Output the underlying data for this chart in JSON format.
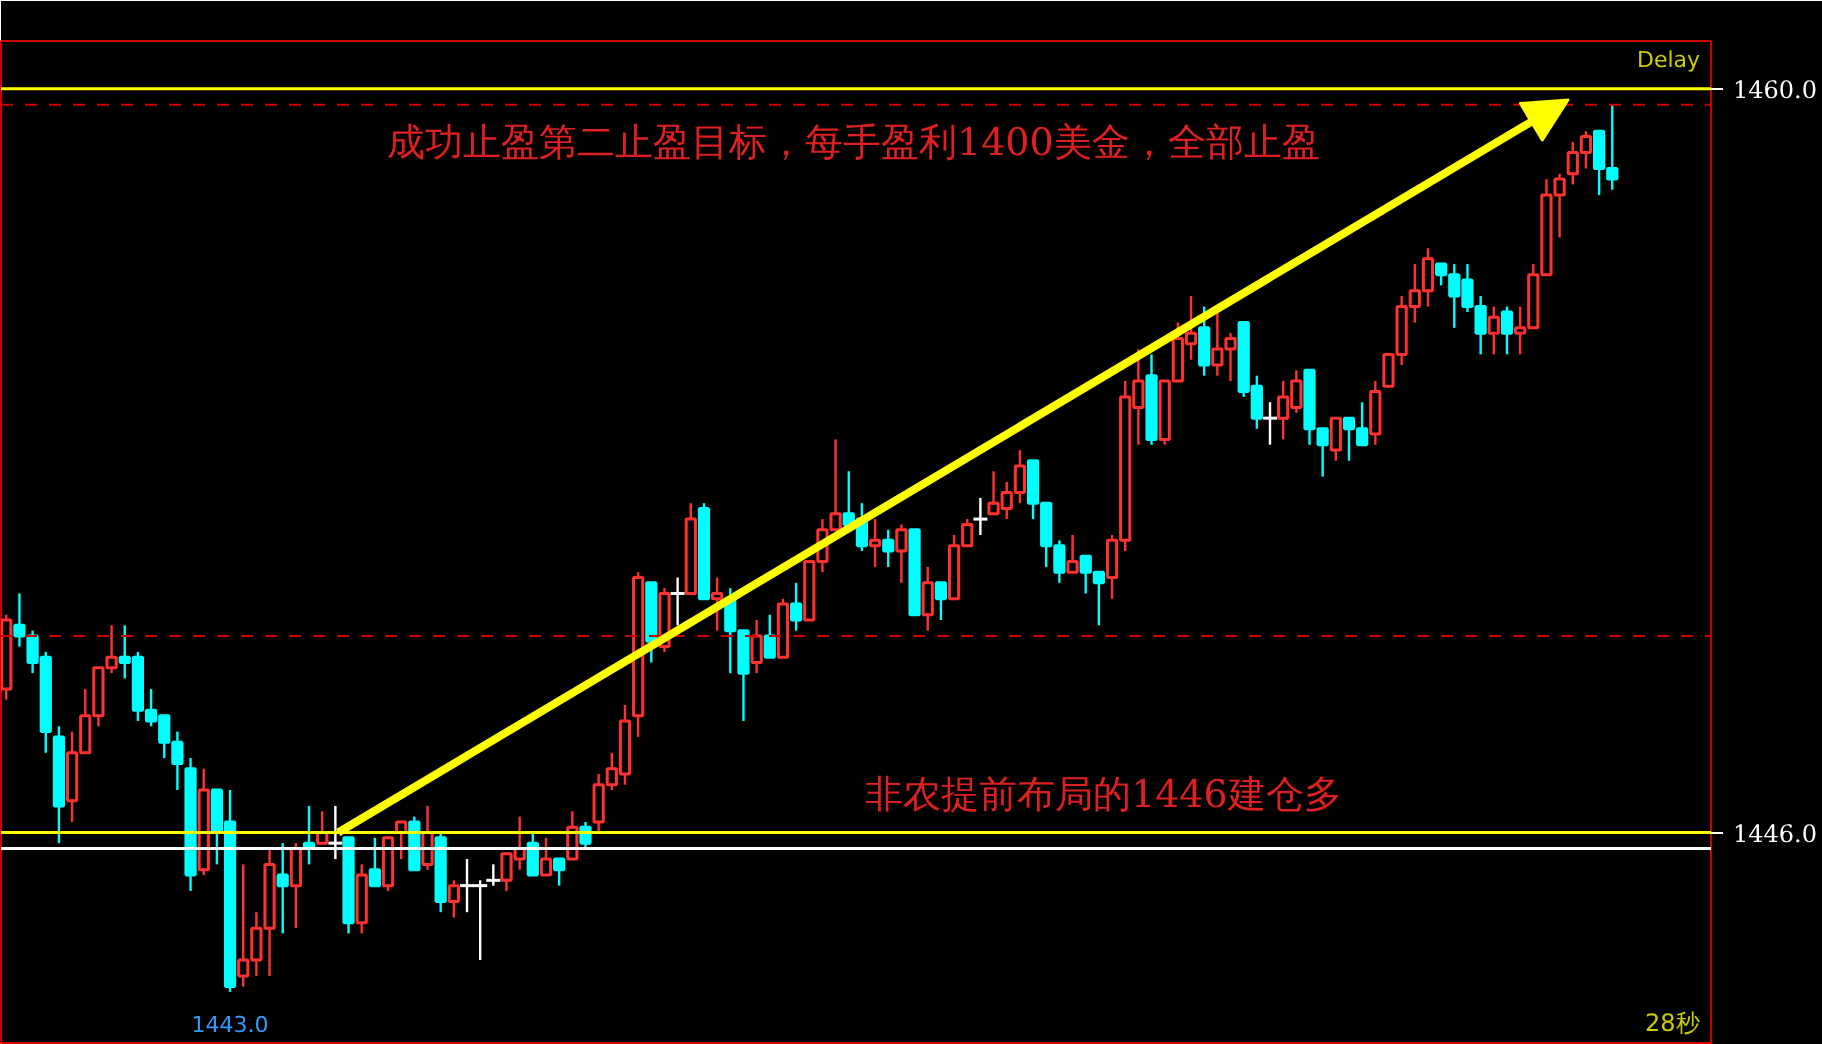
{
  "chart_data": {
    "type": "candlestick",
    "title": "成功止盈第二止盈目标，每手盈利1400美金，全部止盈",
    "categories": [
      null,
      null,
      null,
      null,
      null,
      null,
      null,
      null,
      null,
      null,
      null,
      null,
      null,
      null,
      null,
      null,
      null,
      null,
      null,
      null,
      null,
      null,
      null,
      null,
      null,
      null,
      null,
      null,
      null,
      null,
      null,
      null,
      null,
      null,
      null,
      null,
      null,
      null,
      null,
      null,
      null,
      null,
      null,
      null,
      null,
      null,
      null,
      null,
      null,
      null,
      null,
      null,
      null,
      null,
      null,
      null,
      null,
      null,
      null,
      null,
      null,
      null,
      null,
      null,
      null,
      null,
      null,
      null,
      null,
      null,
      null,
      null,
      null,
      null,
      null,
      null,
      null,
      null,
      null,
      null,
      null,
      null,
      null,
      null,
      null,
      null,
      null,
      null,
      null,
      null,
      null,
      null,
      null,
      null,
      null,
      null,
      null,
      null,
      null,
      null,
      null,
      null,
      null,
      null,
      null,
      null,
      null,
      null,
      null,
      null,
      null,
      null,
      null,
      null,
      null,
      null,
      null,
      null,
      null,
      null,
      null,
      null,
      null
    ],
    "ohlc": [
      [
        1448.7,
        1450.1,
        1448.5,
        1450.0
      ],
      [
        1449.9,
        1450.5,
        1449.5,
        1449.7
      ],
      [
        1449.7,
        1449.8,
        1449.0,
        1449.2
      ],
      [
        1449.3,
        1449.4,
        1447.5,
        1447.9
      ],
      [
        1447.8,
        1448.0,
        1445.8,
        1446.5
      ],
      [
        1446.6,
        1447.9,
        1446.2,
        1447.5
      ],
      [
        1447.5,
        1448.7,
        1447.5,
        1448.2
      ],
      [
        1448.2,
        1449.1,
        1448.0,
        1449.1
      ],
      [
        1449.1,
        1449.9,
        1449.0,
        1449.3
      ],
      [
        1449.3,
        1449.9,
        1448.9,
        1449.2
      ],
      [
        1449.3,
        1449.4,
        1448.1,
        1448.3
      ],
      [
        1448.3,
        1448.7,
        1448.0,
        1448.1
      ],
      [
        1448.2,
        1448.2,
        1447.4,
        1447.7
      ],
      [
        1447.7,
        1447.9,
        1446.8,
        1447.3
      ],
      [
        1447.2,
        1447.4,
        1444.9,
        1445.2
      ],
      [
        1445.3,
        1447.2,
        1445.2,
        1446.8
      ],
      [
        1446.8,
        1446.8,
        1445.4,
        1446.0
      ],
      [
        1446.2,
        1446.8,
        1443.0,
        1443.1
      ],
      [
        1443.3,
        1445.4,
        1443.1,
        1443.6
      ],
      [
        1443.6,
        1444.5,
        1443.3,
        1444.2
      ],
      [
        1444.2,
        1445.7,
        1443.3,
        1445.4
      ],
      [
        1445.2,
        1445.8,
        1444.1,
        1445.0
      ],
      [
        1445.0,
        1445.8,
        1444.2,
        1445.7
      ],
      [
        1445.8,
        1446.5,
        1445.4,
        1445.7
      ],
      [
        1445.8,
        1446.4,
        1445.8,
        1446.0
      ],
      [
        1445.8,
        1446.5,
        1445.5,
        1445.8
      ],
      [
        1445.9,
        1445.9,
        1444.1,
        1444.3
      ],
      [
        1444.3,
        1445.4,
        1444.1,
        1445.2
      ],
      [
        1445.3,
        1445.9,
        1445.0,
        1445.0
      ],
      [
        1445.0,
        1445.9,
        1444.9,
        1445.9
      ],
      [
        1446.0,
        1446.2,
        1445.5,
        1446.2
      ],
      [
        1446.2,
        1446.3,
        1445.3,
        1445.3
      ],
      [
        1445.4,
        1446.5,
        1445.3,
        1446.0
      ],
      [
        1445.9,
        1446.0,
        1444.5,
        1444.7
      ],
      [
        1444.7,
        1445.1,
        1444.4,
        1445.0
      ],
      [
        1445.0,
        1445.5,
        1444.5,
        1445.0
      ],
      [
        1445.0,
        1445.1,
        1443.6,
        1445.0
      ],
      [
        1445.1,
        1445.4,
        1445.0,
        1445.1
      ],
      [
        1445.1,
        1445.6,
        1444.9,
        1445.6
      ],
      [
        1445.5,
        1446.3,
        1445.3,
        1445.7
      ],
      [
        1445.8,
        1446.0,
        1445.2,
        1445.2
      ],
      [
        1445.2,
        1445.9,
        1445.2,
        1445.5
      ],
      [
        1445.5,
        1445.5,
        1445.0,
        1445.3
      ],
      [
        1445.5,
        1446.4,
        1445.5,
        1446.1
      ],
      [
        1446.1,
        1446.2,
        1445.7,
        1445.8
      ],
      [
        1446.2,
        1447.1,
        1446.0,
        1446.9
      ],
      [
        1446.9,
        1447.5,
        1446.8,
        1447.2
      ],
      [
        1447.1,
        1448.4,
        1446.9,
        1448.1
      ],
      [
        1448.2,
        1450.9,
        1447.8,
        1450.8
      ],
      [
        1450.7,
        1450.7,
        1449.2,
        1449.6
      ],
      [
        1449.5,
        1450.6,
        1449.4,
        1450.5
      ],
      [
        1450.5,
        1450.8,
        1449.9,
        1450.5
      ],
      [
        1450.5,
        1452.2,
        1450.5,
        1451.9
      ],
      [
        1452.1,
        1452.2,
        1450.4,
        1450.4
      ],
      [
        1450.4,
        1450.8,
        1449.8,
        1450.5
      ],
      [
        1450.4,
        1450.6,
        1449.0,
        1449.8
      ],
      [
        1449.8,
        1449.8,
        1448.1,
        1449.0
      ],
      [
        1449.2,
        1450.0,
        1449.0,
        1449.7
      ],
      [
        1449.7,
        1450.1,
        1449.3,
        1449.3
      ],
      [
        1449.3,
        1450.4,
        1449.3,
        1450.3
      ],
      [
        1450.3,
        1450.7,
        1449.8,
        1450.0
      ],
      [
        1450.0,
        1451.1,
        1450.0,
        1451.1
      ],
      [
        1451.1,
        1451.9,
        1450.9,
        1451.7
      ],
      [
        1451.7,
        1453.4,
        1451.7,
        1452.0
      ],
      [
        1452.0,
        1452.8,
        1451.8,
        1451.8
      ],
      [
        1451.9,
        1452.2,
        1451.3,
        1451.4
      ],
      [
        1451.4,
        1451.9,
        1451.0,
        1451.5
      ],
      [
        1451.5,
        1451.7,
        1451.0,
        1451.3
      ],
      [
        1451.3,
        1451.8,
        1450.7,
        1451.7
      ],
      [
        1451.7,
        1451.7,
        1450.1,
        1450.1
      ],
      [
        1450.1,
        1451.0,
        1449.8,
        1450.7
      ],
      [
        1450.7,
        1450.7,
        1450.0,
        1450.4
      ],
      [
        1450.4,
        1451.6,
        1450.4,
        1451.4
      ],
      [
        1451.4,
        1451.9,
        1451.4,
        1451.8
      ],
      [
        1451.9,
        1452.3,
        1451.6,
        1451.9
      ],
      [
        1452.0,
        1452.8,
        1452.0,
        1452.2
      ],
      [
        1452.1,
        1452.6,
        1451.9,
        1452.4
      ],
      [
        1452.4,
        1453.2,
        1452.2,
        1452.9
      ],
      [
        1453.0,
        1453.0,
        1451.9,
        1452.2
      ],
      [
        1452.2,
        1452.2,
        1451.0,
        1451.4
      ],
      [
        1451.4,
        1451.5,
        1450.7,
        1450.9
      ],
      [
        1450.9,
        1451.6,
        1450.9,
        1451.1
      ],
      [
        1451.2,
        1451.2,
        1450.5,
        1450.9
      ],
      [
        1450.9,
        1450.9,
        1449.9,
        1450.7
      ],
      [
        1450.8,
        1451.6,
        1450.4,
        1451.5
      ],
      [
        1451.5,
        1454.5,
        1451.3,
        1454.2
      ],
      [
        1454.0,
        1455.1,
        1453.3,
        1454.5
      ],
      [
        1454.6,
        1455.0,
        1453.3,
        1453.4
      ],
      [
        1453.4,
        1454.5,
        1453.3,
        1454.5
      ],
      [
        1454.5,
        1455.6,
        1454.5,
        1455.3
      ],
      [
        1455.2,
        1456.1,
        1454.9,
        1455.4
      ],
      [
        1455.5,
        1455.9,
        1454.6,
        1454.8
      ],
      [
        1454.8,
        1455.9,
        1454.6,
        1455.1
      ],
      [
        1455.1,
        1455.4,
        1454.5,
        1455.3
      ],
      [
        1455.6,
        1455.6,
        1454.2,
        1454.3
      ],
      [
        1454.4,
        1454.6,
        1453.6,
        1453.8
      ],
      [
        1453.8,
        1454.1,
        1453.3,
        1453.8
      ],
      [
        1453.8,
        1454.5,
        1453.4,
        1454.2
      ],
      [
        1454.0,
        1454.7,
        1453.9,
        1454.5
      ],
      [
        1454.7,
        1454.7,
        1453.3,
        1453.6
      ],
      [
        1453.6,
        1453.6,
        1452.7,
        1453.3
      ],
      [
        1453.2,
        1453.8,
        1453.0,
        1453.8
      ],
      [
        1453.8,
        1453.8,
        1453.0,
        1453.6
      ],
      [
        1453.6,
        1454.1,
        1453.3,
        1453.3
      ],
      [
        1453.5,
        1454.5,
        1453.3,
        1454.3
      ],
      [
        1454.4,
        1455.0,
        1454.4,
        1455.0
      ],
      [
        1455.0,
        1456.1,
        1454.8,
        1455.9
      ],
      [
        1455.9,
        1456.7,
        1455.6,
        1456.2
      ],
      [
        1456.2,
        1457.0,
        1455.9,
        1456.8
      ],
      [
        1456.7,
        1456.7,
        1456.3,
        1456.5
      ],
      [
        1456.5,
        1456.7,
        1455.5,
        1456.1
      ],
      [
        1456.4,
        1456.7,
        1455.8,
        1455.9
      ],
      [
        1455.9,
        1456.1,
        1455.0,
        1455.4
      ],
      [
        1455.4,
        1455.9,
        1455.0,
        1455.7
      ],
      [
        1455.8,
        1455.9,
        1455.0,
        1455.4
      ],
      [
        1455.4,
        1455.9,
        1455.0,
        1455.5
      ],
      [
        1455.5,
        1456.7,
        1455.5,
        1456.5
      ],
      [
        1456.5,
        1458.3,
        1456.5,
        1458.0
      ],
      [
        1458.0,
        1458.4,
        1457.2,
        1458.3
      ],
      [
        1458.4,
        1459.0,
        1458.2,
        1458.8
      ],
      [
        1458.8,
        1459.2,
        1458.5,
        1459.1
      ],
      [
        1459.2,
        1459.2,
        1458.0,
        1458.5
      ],
      [
        1458.5,
        1459.7,
        1458.1,
        1458.3
      ]
    ],
    "colors": [
      "#ff3232",
      "#00ffff",
      "#00ffff",
      "#00ffff",
      "#00ffff",
      "#ff3232",
      "#ff3232",
      "#ff3232",
      "#ff3232",
      "#00ffff",
      "#00ffff",
      "#00ffff",
      "#00ffff",
      "#00ffff",
      "#00ffff",
      "#ff3232",
      "#00ffff",
      "#00ffff",
      "#ff3232",
      "#ff3232",
      "#ff3232",
      "#00ffff",
      "#ff3232",
      "#00ffff",
      "#ff3232",
      "#ffffff",
      "#00ffff",
      "#ff3232",
      "#00ffff",
      "#ff3232",
      "#ff3232",
      "#00ffff",
      "#ff3232",
      "#00ffff",
      "#ff3232",
      "#ffffff",
      "#ffffff",
      "#ffffff",
      "#ff3232",
      "#ff3232",
      "#00ffff",
      "#ff3232",
      "#00ffff",
      "#ff3232",
      "#00ffff",
      "#ff3232",
      "#ff3232",
      "#ff3232",
      "#ff3232",
      "#00ffff",
      "#ff3232",
      "#ffffff",
      "#ff3232",
      "#00ffff",
      "#ff3232",
      "#00ffff",
      "#00ffff",
      "#ff3232",
      "#00ffff",
      "#ff3232",
      "#00ffff",
      "#ff3232",
      "#ff3232",
      "#ff3232",
      "#00ffff",
      "#00ffff",
      "#ff3232",
      "#00ffff",
      "#ff3232",
      "#00ffff",
      "#ff3232",
      "#00ffff",
      "#ff3232",
      "#ff3232",
      "#ffffff",
      "#ff3232",
      "#ff3232",
      "#ff3232",
      "#00ffff",
      "#00ffff",
      "#00ffff",
      "#ff3232",
      "#00ffff",
      "#00ffff",
      "#ff3232",
      "#ff3232",
      "#ff3232",
      "#00ffff",
      "#ff3232",
      "#ff3232",
      "#ff3232",
      "#00ffff",
      "#ff3232",
      "#ff3232",
      "#00ffff",
      "#00ffff",
      "#ffffff",
      "#ff3232",
      "#ff3232",
      "#00ffff",
      "#00ffff",
      "#ff3232",
      "#00ffff",
      "#00ffff",
      "#ff3232",
      "#ff3232",
      "#ff3232",
      "#ff3232",
      "#ff3232",
      "#00ffff",
      "#00ffff",
      "#00ffff",
      "#00ffff",
      "#ff3232",
      "#00ffff",
      "#ff3232",
      "#ff3232",
      "#ff3232",
      "#ff3232",
      "#ff3232",
      "#ff3232",
      "#00ffff",
      "#00ffff"
    ],
    "ylim": [
      1442.0,
      1460.9
    ],
    "yticks": [
      {
        "value": 1446,
        "label": "1446.0"
      },
      {
        "value": 1460,
        "label": "1460.0"
      }
    ],
    "tick_labels": "y",
    "grid": false,
    "ref_lines": [
      {
        "axis": "y",
        "value": 1460,
        "color": "#ffff00"
      },
      {
        "axis": "y",
        "value": 1446,
        "color": "#ffff00"
      },
      {
        "axis": "y",
        "value": 1459.7,
        "color": "#cc0000",
        "line_style": "dashed"
      },
      {
        "axis": "y",
        "value": 1449.7,
        "color": "#cc0000",
        "line_style": "dashed"
      },
      {
        "axis": "y",
        "value": 1445.7,
        "color": "#ffffff"
      }
    ],
    "annotations": [
      {
        "text": "非农提前布局的1446建仓多",
        "y": 1446
      },
      {
        "text": "1443.0",
        "y": 1443
      },
      "Delay",
      "28秒"
    ]
  }
}
